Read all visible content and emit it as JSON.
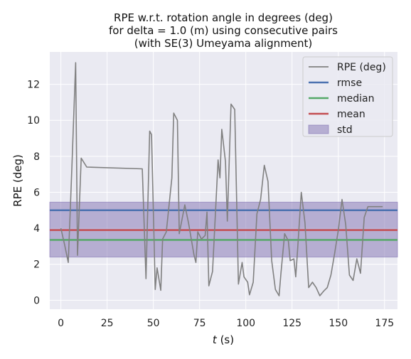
{
  "chart_data": {
    "type": "line",
    "title_lines": [
      "RPE w.r.t. rotation angle in degrees (deg)",
      "for delta = 1.0 (m) using consecutive pairs",
      "(with SE(3) Umeyama alignment)"
    ],
    "xlabel_italic": "t",
    "xlabel_rest": " (s)",
    "ylabel": "RPE (deg)",
    "xlim": [
      -6,
      182
    ],
    "ylim": [
      -0.5,
      13.8
    ],
    "x_ticks": [
      0,
      25,
      50,
      75,
      100,
      125,
      150,
      175
    ],
    "y_ticks": [
      0,
      2,
      4,
      6,
      8,
      10,
      12
    ],
    "grid": true,
    "legend_position": "upper right",
    "background_color": "#eaeaf2",
    "series": [
      {
        "name": "RPE (deg)",
        "color": "#808080",
        "x": [
          0,
          2,
          4,
          6,
          8,
          9,
          11,
          14,
          44,
          46,
          48,
          49,
          51,
          52,
          54,
          55,
          57,
          60,
          61,
          63,
          64,
          67,
          69,
          72,
          73,
          74,
          76,
          78,
          79,
          80,
          82,
          85,
          86,
          87,
          89,
          90,
          92,
          94,
          96,
          98,
          99,
          101,
          102,
          104,
          106,
          108,
          110,
          112,
          114,
          116,
          118,
          119,
          121,
          123,
          124,
          126,
          127,
          128,
          130,
          132,
          134,
          136,
          138,
          140,
          142,
          144,
          146,
          148,
          150,
          152,
          154,
          156,
          158,
          160,
          162,
          164,
          166,
          168,
          170,
          172,
          174
        ],
        "y": [
          4.0,
          3.1,
          2.1,
          7.5,
          13.2,
          2.5,
          7.9,
          7.4,
          7.3,
          1.2,
          9.4,
          9.2,
          0.6,
          1.8,
          0.55,
          3.4,
          3.8,
          6.8,
          10.4,
          10.0,
          3.7,
          5.3,
          4.3,
          2.5,
          2.1,
          3.8,
          3.4,
          3.6,
          4.9,
          0.8,
          1.6,
          7.8,
          6.8,
          9.5,
          7.7,
          4.4,
          10.9,
          10.6,
          0.9,
          2.1,
          1.3,
          1.0,
          0.3,
          1.0,
          4.8,
          5.6,
          7.5,
          6.6,
          2.2,
          0.6,
          0.25,
          1.5,
          3.7,
          3.3,
          2.2,
          2.3,
          1.3,
          2.8,
          6.0,
          4.3,
          0.7,
          1.0,
          0.7,
          0.25,
          0.5,
          0.7,
          1.4,
          2.6,
          3.9,
          5.6,
          4.2,
          1.4,
          1.1,
          2.3,
          1.5,
          4.6,
          5.2,
          5.2,
          5.2,
          5.2,
          5.2
        ]
      },
      {
        "name": "rmse",
        "color": "#4c72b0",
        "value": 5.0
      },
      {
        "name": "median",
        "color": "#55a868",
        "value": 3.35
      },
      {
        "name": "mean",
        "color": "#c44e52",
        "value": 3.9
      },
      {
        "name": "std",
        "color": "#8172b2",
        "range": [
          2.4,
          5.45
        ]
      }
    ]
  }
}
